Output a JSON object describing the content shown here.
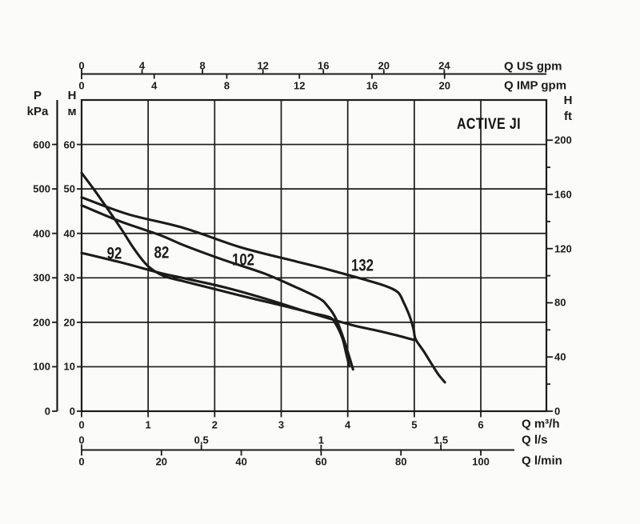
{
  "headers": {
    "pressure": [
      "P",
      "kPa"
    ],
    "head_meters": [
      "H",
      "м"
    ],
    "head_feet": [
      "H",
      "ft"
    ]
  },
  "colors": {
    "ink": "#1b1b1b",
    "background": "#fbfbf9"
  },
  "chart_data": {
    "type": "line",
    "title": "ACTIVE JI",
    "x_axes": [
      {
        "id": "us_gpm",
        "label": "Q US gpm",
        "gpm_per_m3h": 4.4029,
        "ticks": [
          0,
          4,
          8,
          12,
          16,
          20,
          24
        ]
      },
      {
        "id": "imp_gpm",
        "label": "Q IMP gpm",
        "gpm_per_m3h": 3.6661,
        "ticks": [
          0,
          4,
          8,
          12,
          16,
          20
        ]
      },
      {
        "id": "m3h",
        "label": "Q m³/h",
        "ticks": [
          0,
          1,
          2,
          3,
          4,
          5,
          6
        ]
      },
      {
        "id": "ls",
        "label": "Q l/s",
        "ticks": [
          {
            "value": 0,
            "text": "0"
          },
          {
            "value": 0.5,
            "text": "0,5"
          },
          {
            "value": 1,
            "text": "1"
          },
          {
            "value": 1.5,
            "text": "1,5"
          }
        ]
      },
      {
        "id": "lmin",
        "label": "Q l/min",
        "ticks": [
          0,
          20,
          40,
          60,
          80,
          100
        ]
      }
    ],
    "y_axes": [
      {
        "id": "kpa",
        "header": "P kPa",
        "ticks": [
          0,
          100,
          200,
          300,
          400,
          500,
          600
        ]
      },
      {
        "id": "meters",
        "header": "H м",
        "ticks": [
          0,
          10,
          20,
          30,
          40,
          50,
          60
        ]
      },
      {
        "id": "feet",
        "header": "H ft",
        "labeled_ticks": [
          0,
          40,
          80,
          120,
          160,
          200
        ],
        "minor_step": 20
      }
    ],
    "x_range_m3h": [
      0,
      7
    ],
    "y_range_m": [
      0,
      70
    ],
    "grid": {
      "x_step_m3h": 1,
      "y_step_m": 10
    },
    "series": [
      {
        "name": "92",
        "label_at": [
          0.49,
          35.5
        ],
        "points": [
          [
            0,
            35.6
          ],
          [
            0.58,
            33.5
          ],
          [
            1.18,
            31.1
          ],
          [
            1.54,
            29.9
          ],
          [
            2.14,
            27.9
          ],
          [
            2.74,
            25.4
          ],
          [
            3.46,
            22.0
          ],
          [
            4.06,
            19.4
          ],
          [
            4.42,
            18.2
          ],
          [
            4.78,
            16.9
          ],
          [
            5.0,
            16.0
          ]
        ]
      },
      {
        "name": "82",
        "label_at": [
          1.2,
          35.6
        ],
        "points": [
          [
            0,
            53.6
          ],
          [
            0.19,
            49.8
          ],
          [
            0.4,
            45.3
          ],
          [
            0.6,
            40.9
          ],
          [
            0.79,
            36.5
          ],
          [
            1.0,
            32.6
          ],
          [
            1.24,
            30.4
          ],
          [
            1.54,
            29.2
          ],
          [
            2.02,
            27.4
          ],
          [
            2.5,
            25.6
          ],
          [
            2.98,
            23.9
          ],
          [
            3.46,
            22.1
          ],
          [
            3.73,
            21.1
          ],
          [
            3.82,
            19.6
          ],
          [
            3.92,
            16.4
          ],
          [
            3.98,
            12.8
          ],
          [
            4.02,
            10.3
          ]
        ]
      },
      {
        "name": "102",
        "label_at": [
          2.43,
          34.0
        ],
        "points": [
          [
            0,
            46.3
          ],
          [
            0.58,
            42.7
          ],
          [
            1.18,
            39.6
          ],
          [
            1.54,
            37.3
          ],
          [
            2.14,
            34.0
          ],
          [
            2.74,
            31.0
          ],
          [
            3.22,
            27.9
          ],
          [
            3.57,
            25.4
          ],
          [
            3.7,
            23.6
          ],
          [
            3.82,
            20.9
          ],
          [
            3.94,
            16.2
          ],
          [
            4.03,
            11.9
          ],
          [
            4.08,
            9.4
          ]
        ]
      },
      {
        "name": "132",
        "label_at": [
          4.22,
          32.8
        ],
        "points": [
          [
            0,
            48.1
          ],
          [
            0.7,
            44.3
          ],
          [
            1.54,
            41.2
          ],
          [
            2.38,
            36.9
          ],
          [
            3.22,
            33.7
          ],
          [
            3.7,
            31.9
          ],
          [
            4.18,
            29.9
          ],
          [
            4.54,
            28.3
          ],
          [
            4.75,
            26.8
          ],
          [
            4.84,
            24.5
          ],
          [
            4.93,
            21.4
          ],
          [
            4.99,
            18.4
          ],
          [
            5.02,
            16.2
          ],
          [
            5.15,
            13.3
          ],
          [
            5.27,
            10.4
          ],
          [
            5.36,
            8.3
          ],
          [
            5.46,
            6.5
          ]
        ]
      }
    ]
  }
}
